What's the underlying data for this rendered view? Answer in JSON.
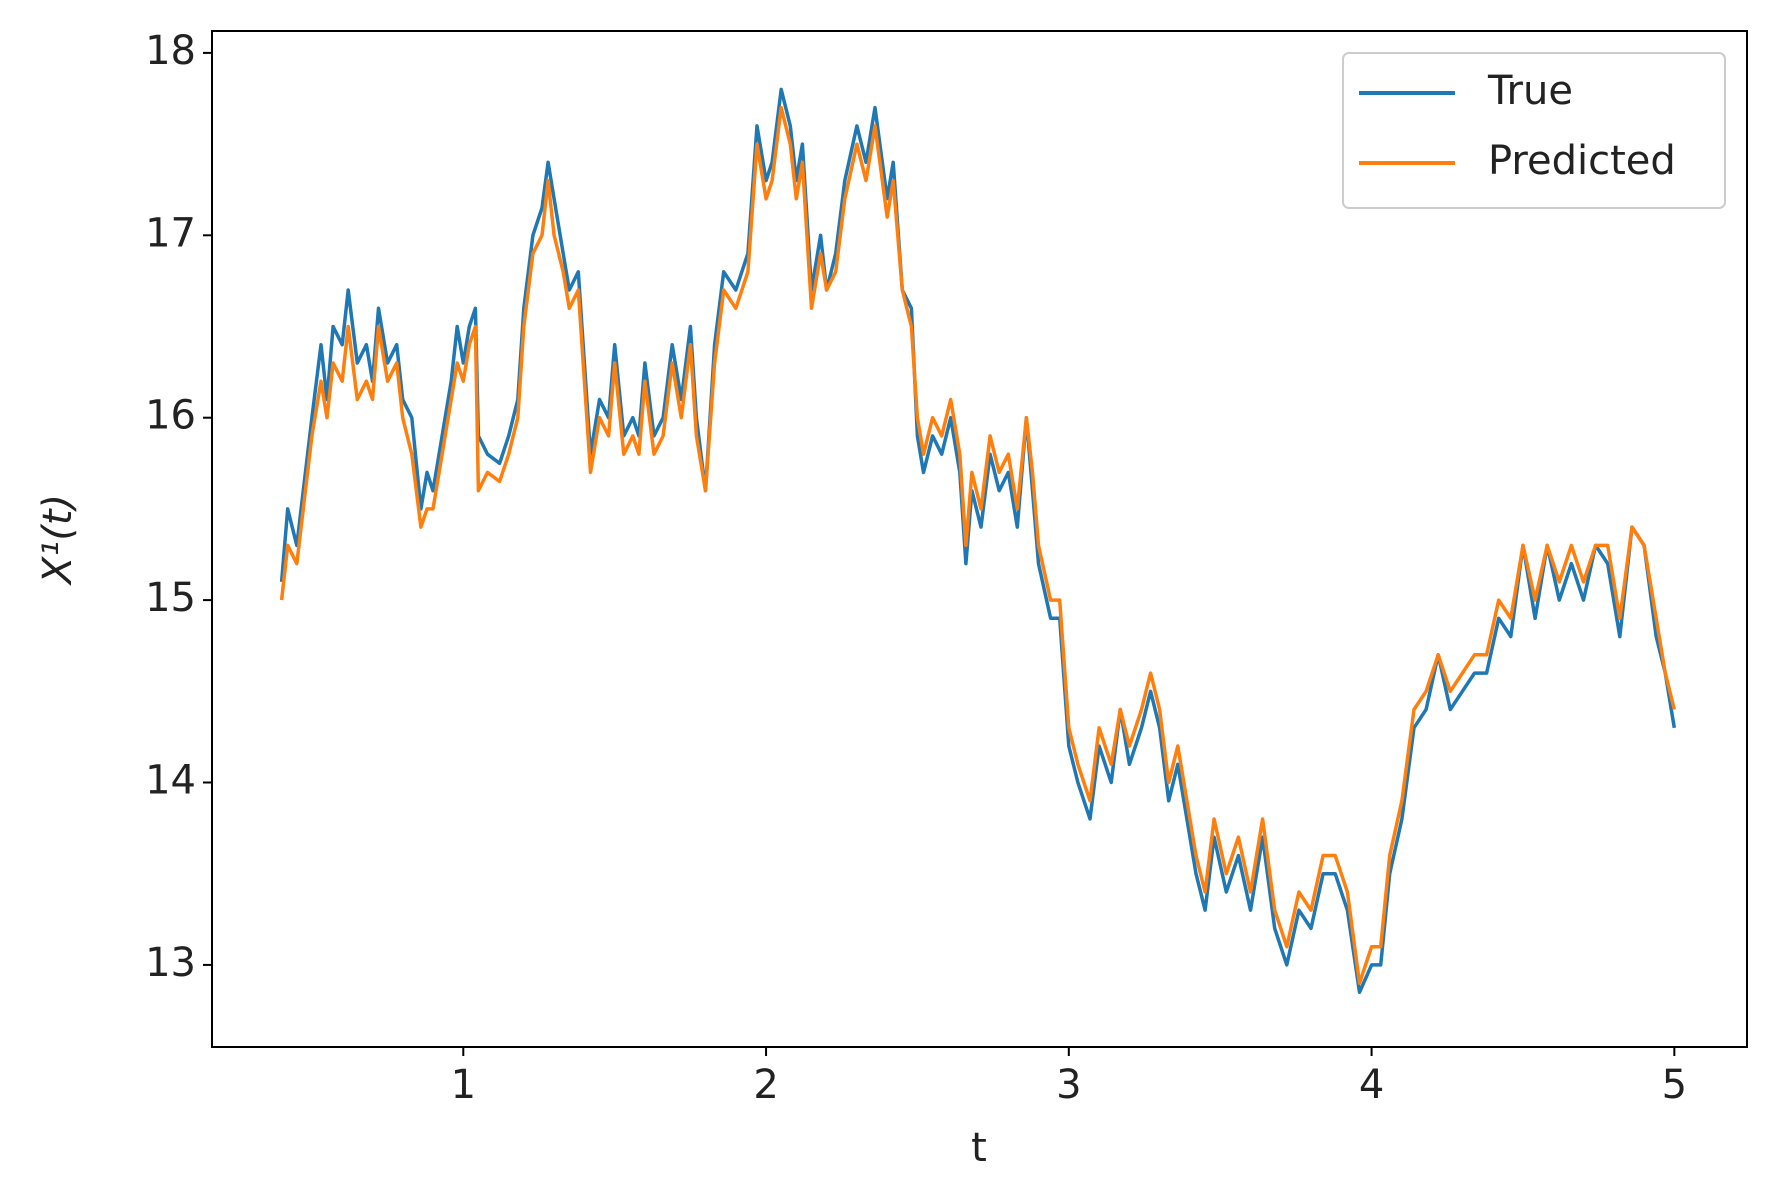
{
  "chart_data": {
    "type": "line",
    "x_label": "t",
    "y_label": "X¹(t)",
    "x": [
      0.4,
      0.42,
      0.45,
      0.5,
      0.53,
      0.55,
      0.57,
      0.6,
      0.62,
      0.65,
      0.68,
      0.7,
      0.72,
      0.75,
      0.78,
      0.8,
      0.83,
      0.86,
      0.88,
      0.9,
      0.93,
      0.96,
      0.98,
      1.0,
      1.02,
      1.04,
      1.05,
      1.08,
      1.12,
      1.15,
      1.18,
      1.2,
      1.23,
      1.26,
      1.28,
      1.3,
      1.33,
      1.35,
      1.38,
      1.4,
      1.42,
      1.45,
      1.48,
      1.5,
      1.53,
      1.56,
      1.58,
      1.6,
      1.63,
      1.66,
      1.69,
      1.72,
      1.75,
      1.77,
      1.8,
      1.83,
      1.86,
      1.9,
      1.94,
      1.97,
      2.0,
      2.02,
      2.05,
      2.08,
      2.1,
      2.12,
      2.15,
      2.18,
      2.2,
      2.23,
      2.26,
      2.3,
      2.33,
      2.36,
      2.4,
      2.42,
      2.45,
      2.48,
      2.5,
      2.52,
      2.55,
      2.58,
      2.61,
      2.64,
      2.66,
      2.68,
      2.71,
      2.74,
      2.77,
      2.8,
      2.83,
      2.86,
      2.88,
      2.9,
      2.94,
      2.97,
      3.0,
      3.03,
      3.07,
      3.1,
      3.14,
      3.17,
      3.2,
      3.24,
      3.27,
      3.3,
      3.33,
      3.36,
      3.39,
      3.42,
      3.45,
      3.48,
      3.52,
      3.56,
      3.6,
      3.64,
      3.68,
      3.72,
      3.76,
      3.8,
      3.84,
      3.88,
      3.92,
      3.96,
      4.0,
      4.03,
      4.06,
      4.1,
      4.14,
      4.18,
      4.22,
      4.26,
      4.3,
      4.34,
      4.38,
      4.42,
      4.46,
      4.5,
      4.54,
      4.58,
      4.62,
      4.66,
      4.7,
      4.74,
      4.78,
      4.82,
      4.86,
      4.9,
      4.94,
      4.97,
      5.0
    ],
    "series": [
      {
        "name": "True",
        "color": "#1f77b4",
        "values": [
          15.1,
          15.5,
          15.3,
          16.0,
          16.4,
          16.1,
          16.5,
          16.4,
          16.7,
          16.3,
          16.4,
          16.2,
          16.6,
          16.3,
          16.4,
          16.1,
          16.0,
          15.5,
          15.7,
          15.6,
          15.9,
          16.2,
          16.5,
          16.3,
          16.5,
          16.6,
          15.9,
          15.8,
          15.75,
          15.9,
          16.1,
          16.6,
          17.0,
          17.15,
          17.4,
          17.2,
          16.9,
          16.7,
          16.8,
          16.3,
          15.8,
          16.1,
          16.0,
          16.4,
          15.9,
          16.0,
          15.9,
          16.3,
          15.9,
          16.0,
          16.4,
          16.1,
          16.5,
          16.0,
          15.6,
          16.4,
          16.8,
          16.7,
          16.9,
          17.6,
          17.3,
          17.4,
          17.8,
          17.6,
          17.3,
          17.5,
          16.7,
          17.0,
          16.7,
          16.9,
          17.3,
          17.6,
          17.4,
          17.7,
          17.2,
          17.4,
          16.7,
          16.6,
          15.9,
          15.7,
          15.9,
          15.8,
          16.0,
          15.7,
          15.2,
          15.6,
          15.4,
          15.8,
          15.6,
          15.7,
          15.4,
          16.0,
          15.6,
          15.2,
          14.9,
          14.9,
          14.2,
          14.0,
          13.8,
          14.2,
          14.0,
          14.4,
          14.1,
          14.3,
          14.5,
          14.3,
          13.9,
          14.1,
          13.8,
          13.5,
          13.3,
          13.7,
          13.4,
          13.6,
          13.3,
          13.7,
          13.2,
          13.0,
          13.3,
          13.2,
          13.5,
          13.5,
          13.3,
          12.85,
          13.0,
          13.0,
          13.5,
          13.8,
          14.3,
          14.4,
          14.7,
          14.4,
          14.5,
          14.6,
          14.6,
          14.9,
          14.8,
          15.3,
          14.9,
          15.3,
          15.0,
          15.2,
          15.0,
          15.3,
          15.2,
          14.8,
          15.4,
          15.3,
          14.8,
          14.6,
          14.3
        ]
      },
      {
        "name": "Predicted",
        "color": "#ff7f0e",
        "values": [
          15.0,
          15.3,
          15.2,
          15.9,
          16.2,
          16.0,
          16.3,
          16.2,
          16.5,
          16.1,
          16.2,
          16.1,
          16.5,
          16.2,
          16.3,
          16.0,
          15.8,
          15.4,
          15.5,
          15.5,
          15.8,
          16.1,
          16.3,
          16.2,
          16.4,
          16.5,
          15.6,
          15.7,
          15.65,
          15.8,
          16.0,
          16.5,
          16.9,
          17.0,
          17.3,
          17.0,
          16.8,
          16.6,
          16.7,
          16.2,
          15.7,
          16.0,
          15.9,
          16.3,
          15.8,
          15.9,
          15.8,
          16.2,
          15.8,
          15.9,
          16.3,
          16.0,
          16.4,
          15.9,
          15.6,
          16.3,
          16.7,
          16.6,
          16.8,
          17.5,
          17.2,
          17.3,
          17.7,
          17.5,
          17.2,
          17.4,
          16.6,
          16.9,
          16.7,
          16.8,
          17.2,
          17.5,
          17.3,
          17.6,
          17.1,
          17.3,
          16.7,
          16.5,
          16.0,
          15.8,
          16.0,
          15.9,
          16.1,
          15.8,
          15.3,
          15.7,
          15.5,
          15.9,
          15.7,
          15.8,
          15.5,
          16.0,
          15.7,
          15.3,
          15.0,
          15.0,
          14.3,
          14.1,
          13.9,
          14.3,
          14.1,
          14.4,
          14.2,
          14.4,
          14.6,
          14.4,
          14.0,
          14.2,
          13.9,
          13.6,
          13.4,
          13.8,
          13.5,
          13.7,
          13.4,
          13.8,
          13.3,
          13.1,
          13.4,
          13.3,
          13.6,
          13.6,
          13.4,
          12.9,
          13.1,
          13.1,
          13.6,
          13.9,
          14.4,
          14.5,
          14.7,
          14.5,
          14.6,
          14.7,
          14.7,
          15.0,
          14.9,
          15.3,
          15.0,
          15.3,
          15.1,
          15.3,
          15.1,
          15.3,
          15.3,
          14.9,
          15.4,
          15.3,
          14.9,
          14.6,
          14.4
        ]
      }
    ],
    "xlim": [
      0.17,
      5.24
    ],
    "xticks": [
      1,
      2,
      3,
      4,
      5
    ],
    "ylim": [
      12.55,
      18.12
    ],
    "yticks": [
      13,
      14,
      15,
      16,
      17,
      18
    ],
    "grid": false,
    "legend": "upper right"
  }
}
